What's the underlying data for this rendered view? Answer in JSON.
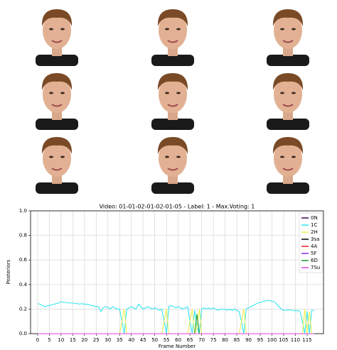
{
  "chart_data": {
    "type": "line",
    "title": "Video: 01-01-02-01-02-01-05  -  Label: 1  -  Max.Voting: 1",
    "xlabel": "Frame Number",
    "ylabel": "Posteriors",
    "x": [
      0,
      1,
      2,
      3,
      4,
      5,
      6,
      7,
      8,
      9,
      10,
      11,
      12,
      13,
      14,
      15,
      16,
      17,
      18,
      19,
      20,
      21,
      22,
      23,
      24,
      25,
      26,
      27,
      28,
      29,
      30,
      31,
      32,
      33,
      34,
      35,
      36,
      37,
      38,
      39,
      40,
      41,
      42,
      43,
      44,
      45,
      46,
      47,
      48,
      49,
      50,
      51,
      52,
      53,
      54,
      55,
      56,
      57,
      58,
      59,
      60,
      61,
      62,
      63,
      64,
      65,
      66,
      67,
      68,
      69,
      70,
      71,
      72,
      73,
      74,
      75,
      76,
      77,
      78,
      79,
      80,
      81,
      82,
      83,
      84,
      85,
      86,
      87,
      88,
      89,
      90,
      91,
      92,
      93,
      94,
      95,
      96,
      97,
      98,
      99,
      100,
      101,
      102,
      103,
      104,
      105,
      106,
      107,
      108,
      109,
      110,
      111,
      112,
      113,
      114,
      115,
      116,
      117,
      118
    ],
    "xlim": [
      -3,
      122
    ],
    "xticks": [
      0,
      5,
      10,
      15,
      20,
      25,
      30,
      35,
      40,
      45,
      50,
      55,
      60,
      65,
      70,
      75,
      80,
      85,
      90,
      95,
      100,
      105,
      110,
      115
    ],
    "ylim": [
      0,
      1
    ],
    "yticks": [
      {
        "value": 0,
        "label": "0.0"
      },
      {
        "value": 0.2,
        "label": "0.2"
      },
      {
        "value": 0.4,
        "label": "0.4"
      },
      {
        "value": 0.6,
        "label": "0.6"
      },
      {
        "value": 0.8,
        "label": "0.8"
      },
      {
        "value": 1,
        "label": "1.0"
      }
    ],
    "grid": true,
    "legend": "upper right",
    "series": [
      {
        "name": "0N",
        "color": "#440154",
        "values": [
          0,
          0,
          0,
          0,
          0,
          0,
          0,
          0,
          0,
          0,
          0,
          0,
          0,
          0,
          0,
          0,
          0,
          0,
          0,
          0,
          0,
          0,
          0,
          0,
          0,
          0,
          0,
          0,
          0,
          0,
          0,
          0,
          0,
          0,
          0,
          0,
          0,
          0,
          0,
          0,
          0,
          0,
          0,
          0,
          0,
          0,
          0,
          0,
          0,
          0,
          0,
          0,
          0,
          0,
          0,
          0,
          0,
          0,
          0,
          0,
          0,
          0,
          0,
          0,
          0,
          0,
          0,
          0,
          0,
          0,
          0,
          0,
          0,
          0,
          0,
          0,
          0,
          0,
          0,
          0,
          0,
          0,
          0,
          0,
          0,
          0,
          0,
          0,
          0,
          0,
          0,
          0,
          0,
          0,
          0,
          0,
          0,
          0,
          0,
          0,
          0,
          0,
          0,
          0,
          0,
          0,
          0,
          0,
          0,
          0,
          0,
          0,
          0,
          0,
          0,
          0,
          0,
          0,
          0
        ]
      },
      {
        "name": "1C",
        "color": "#33e6f0",
        "values": [
          0.245,
          0.24,
          0.23,
          0.22,
          0.225,
          0.23,
          0.235,
          0.24,
          0.245,
          0.25,
          0.26,
          0.255,
          0.255,
          0.25,
          0.25,
          0.25,
          0.245,
          0.245,
          0.24,
          0.245,
          0.24,
          0.24,
          0.235,
          0.23,
          0.225,
          0.22,
          0.22,
          0.18,
          0.21,
          0.22,
          0.215,
          0.2,
          0.22,
          0.21,
          0.2,
          0.2,
          0.1,
          0,
          0.2,
          0.21,
          0.22,
          0.21,
          0.2,
          0.24,
          0.22,
          0.2,
          0.21,
          0.22,
          0.21,
          0.2,
          0.21,
          0.2,
          0.19,
          0.2,
          0.1,
          0,
          0.22,
          0.23,
          0.22,
          0.21,
          0.22,
          0.21,
          0.2,
          0.21,
          0.22,
          0.1,
          0,
          0.19,
          0.05,
          0,
          0.2,
          0.21,
          0.2,
          0.21,
          0.2,
          0.21,
          0.2,
          0.19,
          0.2,
          0.2,
          0.2,
          0.19,
          0.2,
          0.19,
          0.2,
          0.19,
          0.18,
          0.1,
          0,
          0.2,
          0.21,
          0.22,
          0.23,
          0.24,
          0.25,
          0.255,
          0.26,
          0.265,
          0.27,
          0.27,
          0.265,
          0.26,
          0.24,
          0.22,
          0.2,
          0.19,
          0.19,
          0.195,
          0.19,
          0.19,
          0.185,
          0.19,
          0.18,
          0.1,
          0,
          0.18,
          0,
          0.19,
          0.19
        ]
      },
      {
        "name": "2H",
        "color": "#f0f050",
        "values": [
          0,
          0,
          0,
          0,
          0,
          0,
          0,
          0,
          0,
          0,
          0,
          0,
          0,
          0,
          0,
          0,
          0,
          0,
          0,
          0,
          0,
          0,
          0,
          0,
          0,
          0,
          0,
          0,
          0,
          0,
          0,
          0,
          0,
          0,
          0,
          0,
          0.1,
          0.2,
          0,
          0,
          0,
          0,
          0,
          0,
          0,
          0,
          0,
          0,
          0,
          0,
          0,
          0,
          0,
          0,
          0.1,
          0.2,
          0,
          0,
          0,
          0,
          0,
          0,
          0,
          0,
          0,
          0.1,
          0.2,
          0,
          0.05,
          0.2,
          0,
          0,
          0,
          0,
          0,
          0,
          0,
          0,
          0,
          0,
          0,
          0,
          0,
          0,
          0,
          0,
          0,
          0.1,
          0.2,
          0,
          0,
          0,
          0,
          0,
          0,
          0,
          0,
          0,
          0,
          0,
          0,
          0,
          0,
          0,
          0,
          0,
          0,
          0,
          0,
          0,
          0,
          0,
          0,
          0,
          0.2,
          0,
          0.18,
          0,
          0
        ]
      },
      {
        "name": "3sa",
        "color": "#000000",
        "values": [
          0,
          0,
          0,
          0,
          0,
          0,
          0,
          0,
          0,
          0,
          0,
          0,
          0,
          0,
          0,
          0,
          0,
          0,
          0,
          0,
          0,
          0,
          0,
          0,
          0,
          0,
          0,
          0,
          0,
          0,
          0,
          0,
          0,
          0,
          0,
          0,
          0,
          0,
          0,
          0,
          0,
          0,
          0,
          0,
          0,
          0,
          0,
          0,
          0,
          0,
          0,
          0,
          0,
          0,
          0,
          0,
          0,
          0,
          0,
          0,
          0,
          0,
          0,
          0,
          0,
          0,
          0,
          0,
          0,
          0,
          0,
          0,
          0,
          0,
          0,
          0,
          0,
          0,
          0,
          0,
          0,
          0,
          0,
          0,
          0,
          0,
          0,
          0,
          0,
          0,
          0,
          0,
          0,
          0,
          0,
          0,
          0,
          0,
          0,
          0,
          0,
          0,
          0,
          0,
          0,
          0,
          0,
          0,
          0,
          0,
          0,
          0,
          0,
          0,
          0,
          0,
          0,
          0,
          0
        ]
      },
      {
        "name": "4A",
        "color": "#e02020",
        "values": [
          0,
          0,
          0,
          0,
          0,
          0,
          0,
          0,
          0,
          0,
          0,
          0,
          0,
          0,
          0,
          0,
          0,
          0,
          0,
          0,
          0,
          0,
          0,
          0,
          0,
          0,
          0,
          0,
          0,
          0,
          0,
          0,
          0,
          0,
          0,
          0,
          0,
          0,
          0,
          0,
          0,
          0,
          0,
          0,
          0,
          0,
          0,
          0,
          0,
          0,
          0,
          0,
          0,
          0,
          0,
          0,
          0,
          0,
          0,
          0,
          0,
          0,
          0,
          0,
          0,
          0,
          0,
          0,
          0,
          0,
          0,
          0,
          0,
          0,
          0,
          0,
          0,
          0,
          0,
          0,
          0,
          0,
          0,
          0,
          0,
          0,
          0,
          0,
          0,
          0,
          0,
          0,
          0,
          0,
          0,
          0,
          0,
          0,
          0,
          0,
          0,
          0,
          0,
          0,
          0,
          0,
          0,
          0,
          0,
          0,
          0,
          0,
          0,
          0,
          0,
          0,
          0,
          0,
          0
        ]
      },
      {
        "name": "5F",
        "color": "#8a2be2",
        "values": [
          0,
          0,
          0,
          0,
          0,
          0,
          0,
          0,
          0,
          0,
          0,
          0,
          0,
          0,
          0,
          0,
          0,
          0,
          0,
          0,
          0,
          0,
          0,
          0,
          0,
          0,
          0,
          0,
          0,
          0,
          0,
          0,
          0,
          0,
          0,
          0,
          0,
          0,
          0,
          0,
          0,
          0,
          0,
          0,
          0,
          0,
          0,
          0,
          0,
          0,
          0,
          0,
          0,
          0,
          0,
          0,
          0,
          0,
          0,
          0,
          0,
          0,
          0,
          0,
          0,
          0,
          0,
          0,
          0,
          0,
          0,
          0,
          0,
          0,
          0,
          0,
          0,
          0,
          0,
          0,
          0,
          0,
          0,
          0,
          0,
          0,
          0,
          0,
          0,
          0,
          0,
          0,
          0,
          0,
          0,
          0,
          0,
          0,
          0,
          0,
          0,
          0,
          0,
          0,
          0,
          0,
          0,
          0,
          0,
          0,
          0,
          0,
          0,
          0,
          0,
          0,
          0,
          0,
          0
        ]
      },
      {
        "name": "6D",
        "color": "#1a9a2a",
        "values": [
          0,
          0,
          0,
          0,
          0,
          0,
          0,
          0,
          0,
          0,
          0,
          0,
          0,
          0,
          0,
          0,
          0,
          0,
          0,
          0,
          0,
          0,
          0,
          0,
          0,
          0,
          0,
          0,
          0,
          0,
          0,
          0,
          0,
          0,
          0,
          0,
          0,
          0,
          0,
          0,
          0,
          0,
          0,
          0,
          0,
          0,
          0,
          0,
          0,
          0,
          0,
          0,
          0,
          0,
          0,
          0,
          0,
          0,
          0,
          0,
          0,
          0,
          0,
          0,
          0,
          0,
          0,
          0,
          0.16,
          0,
          0,
          0,
          0,
          0,
          0,
          0,
          0,
          0,
          0,
          0,
          0,
          0,
          0,
          0,
          0,
          0,
          0,
          0,
          0,
          0,
          0,
          0,
          0,
          0,
          0,
          0,
          0,
          0,
          0,
          0,
          0,
          0,
          0,
          0,
          0,
          0,
          0,
          0,
          0,
          0,
          0,
          0,
          0,
          0,
          0,
          0,
          0,
          0,
          0
        ]
      },
      {
        "name": "7Su",
        "color": "#e040e0",
        "values": [
          0,
          0,
          0,
          0,
          0,
          0,
          0,
          0,
          0,
          0,
          0,
          0,
          0,
          0,
          0,
          0,
          0,
          0,
          0,
          0,
          0,
          0,
          0,
          0,
          0,
          0,
          0,
          0,
          0,
          0,
          0,
          0,
          0,
          0,
          0,
          0,
          0,
          0,
          0,
          0,
          0,
          0,
          0,
          0,
          0,
          0,
          0,
          0,
          0,
          0,
          0,
          0,
          0,
          0,
          0,
          0,
          0,
          0,
          0,
          0,
          0,
          0,
          0,
          0,
          0,
          0,
          0,
          0,
          0,
          0,
          0,
          0,
          0,
          0,
          0,
          0,
          0,
          0,
          0,
          0,
          0,
          0,
          0,
          0,
          0,
          0,
          0,
          0,
          0,
          0,
          0,
          0,
          0,
          0,
          0,
          0,
          0,
          0,
          0,
          0,
          0,
          0,
          0,
          0,
          0,
          0,
          0,
          0,
          0,
          0,
          0,
          0,
          0,
          0,
          0,
          0,
          0,
          0,
          0
        ]
      }
    ]
  }
}
